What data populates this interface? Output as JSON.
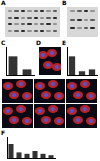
{
  "panel_letters": [
    "A",
    "B",
    "C",
    "D",
    "E",
    "F"
  ],
  "chart_data": [
    {
      "type": "bar",
      "categories": [
        null,
        null
      ],
      "values": [
        1.0,
        0.3
      ],
      "color": "#333333",
      "ylim": [
        0,
        1.5
      ],
      "grid": false,
      "tick_labels": false
    },
    {
      "type": "bar",
      "categories": [
        null,
        null,
        null
      ],
      "values": [
        1.0,
        0.2,
        0.3
      ],
      "color": "#333333",
      "ylim": [
        0,
        1.5
      ],
      "grid": false,
      "tick_labels": false
    },
    {
      "type": "bar",
      "categories": [
        null,
        null,
        null,
        null,
        null,
        null
      ],
      "values": [
        1.0,
        0.4,
        0.3,
        0.5,
        0.3,
        0.2
      ],
      "color": "#333333",
      "ylim": [
        0,
        1.5
      ],
      "grid": false,
      "tick_labels": false
    }
  ]
}
